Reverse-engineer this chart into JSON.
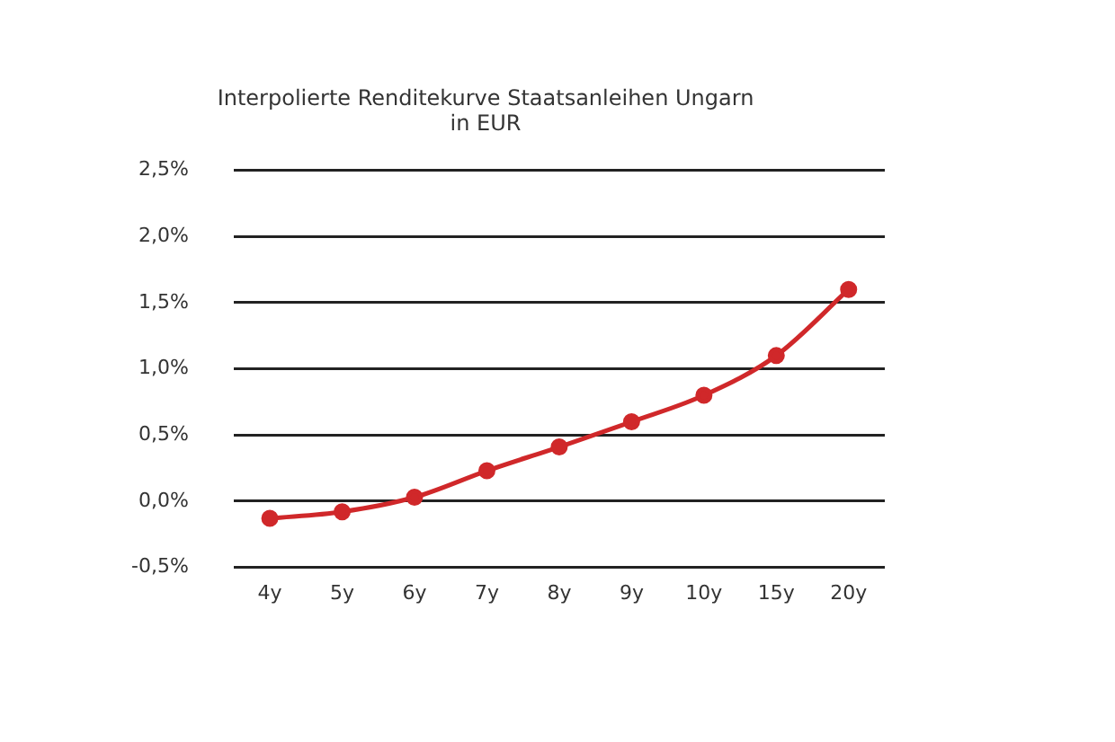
{
  "chart_data": {
    "type": "line",
    "title": [
      "Interpolierte Renditekurve Staatsanleihen Ungarn",
      "in EUR"
    ],
    "categories": [
      "4y",
      "5y",
      "6y",
      "7y",
      "8y",
      "9y",
      "10y",
      "15y",
      "20y"
    ],
    "series": [
      {
        "color": "#d0282a",
        "values": [
          -0.13,
          -0.08,
          0.03,
          0.23,
          0.41,
          0.6,
          0.8,
          1.1,
          1.6
        ]
      }
    ],
    "ylim": [
      -0.5,
      2.5
    ],
    "yticks": [
      {
        "value": -0.5,
        "label": "-0,5%"
      },
      {
        "value": 0,
        "label": "0,0%"
      },
      {
        "value": 0.5,
        "label": "0,5%"
      },
      {
        "value": 1,
        "label": "1,0%"
      },
      {
        "value": 1.5,
        "label": "1,5%"
      },
      {
        "value": 2,
        "label": "2,0%"
      },
      {
        "value": 2.5,
        "label": "2,5%"
      }
    ],
    "grid": "y",
    "legend": false,
    "marker": "circle",
    "line_style": "solid"
  }
}
